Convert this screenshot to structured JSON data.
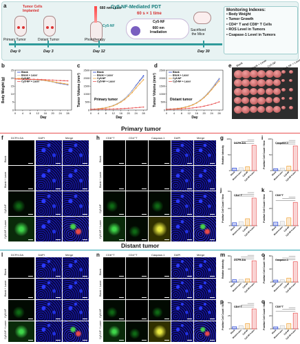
{
  "panel_a": {
    "letter": "a",
    "title_prefix": "Cy5-NF-Mediated PDT",
    "dose_text": "60 s × 1 time",
    "cloud_label": "Cy5-NF",
    "irradiation_label": "660 nm\nIrradiation",
    "implant_label": "Tumor Cells\nImplanted",
    "primary_label": "Primary Tumor",
    "distant_label": "Distant Tumor",
    "laser_label": "660 nm Laser",
    "agent_label": "Cy5-NF",
    "phototherapy_label": "Phototherapy",
    "sacrifice_label": "Sacrificed\nthe Mice",
    "days": [
      "Day 0",
      "Day 3",
      "Day 12",
      "Day 30"
    ],
    "monitoring_title": "Monitoring Indexes:",
    "monitoring_items": [
      "Body Weight",
      "Tumor Growth",
      "CD4⁺ T and CD8⁺ T Cells",
      "ROS Level in Tumors",
      "Csapase-1 Level in Tumors"
    ]
  },
  "legend_groups": [
    "Blank",
    "Blank + Laser",
    "Cy5-NF",
    "Cy5-NF + Laser"
  ],
  "colors": {
    "blank": "#1f3fd6",
    "blank_laser": "#c8c8c8",
    "cy5nf": "#f0a030",
    "cy5nf_laser": "#e85050",
    "primary_line": "#e85050",
    "distant_line": "#2aa6b3"
  },
  "panel_b": {
    "letter": "b",
    "chart_data": {
      "type": "line",
      "xlabel": "Day",
      "ylabel": "Body Weight (g)",
      "ylim": [
        0,
        25
      ],
      "yticks": [
        0,
        5,
        10,
        15,
        20,
        25
      ],
      "x": [
        0,
        2,
        4,
        6,
        8,
        10,
        12,
        14,
        16,
        18,
        20,
        22,
        24,
        26,
        28
      ],
      "xticks": [
        0,
        4,
        8,
        12,
        16,
        20,
        24,
        28
      ],
      "series": [
        {
          "name": "Blank",
          "values": [
            19.5,
            19.6,
            19.4,
            19.3,
            19.2,
            19.3,
            19.0,
            18.8,
            18.5,
            18.0,
            17.6,
            17.0,
            16.6,
            16.2,
            15.8
          ]
        },
        {
          "name": "Blank + Laser",
          "values": [
            19.4,
            19.5,
            19.3,
            19.2,
            19.0,
            19.1,
            18.9,
            18.6,
            18.4,
            18.0,
            17.5,
            17.1,
            16.8,
            16.4,
            16.0
          ]
        },
        {
          "name": "Cy5-NF",
          "values": [
            19.6,
            19.7,
            19.5,
            19.4,
            19.3,
            19.2,
            19.1,
            18.9,
            18.6,
            18.2,
            17.9,
            17.4,
            17.0,
            16.6,
            16.2
          ]
        },
        {
          "name": "Cy5-NF + Laser",
          "values": [
            19.5,
            19.4,
            19.3,
            19.2,
            19.2,
            19.3,
            19.2,
            19.1,
            19.0,
            18.9,
            18.8,
            18.6,
            18.5,
            18.4,
            18.3
          ]
        }
      ]
    }
  },
  "panel_c": {
    "letter": "c",
    "chart_data": {
      "type": "line",
      "title": "Primary tumor",
      "xlabel": "Day",
      "ylabel": "Tumor Volume (mm³)",
      "ylim": [
        0,
        2500
      ],
      "yticks": [
        0,
        500,
        1000,
        1500,
        2000,
        2500
      ],
      "x": [
        0,
        2,
        4,
        6,
        8,
        10,
        12,
        14,
        16,
        18,
        20,
        22,
        24,
        26,
        28
      ],
      "xticks": [
        0,
        4,
        8,
        12,
        16,
        20,
        24,
        28
      ],
      "series": [
        {
          "name": "Blank",
          "values": [
            50,
            60,
            80,
            110,
            150,
            210,
            290,
            400,
            540,
            720,
            950,
            1220,
            1540,
            1850,
            2150
          ]
        },
        {
          "name": "Blank + Laser",
          "values": [
            50,
            62,
            85,
            115,
            160,
            220,
            300,
            410,
            550,
            730,
            940,
            1200,
            1500,
            1800,
            2050
          ]
        },
        {
          "name": "Cy5-NF",
          "values": [
            50,
            58,
            78,
            105,
            140,
            200,
            270,
            370,
            500,
            660,
            870,
            1100,
            1380,
            1650,
            1900
          ]
        },
        {
          "name": "Cy5-NF + Laser",
          "values": [
            50,
            52,
            55,
            58,
            62,
            66,
            70,
            78,
            88,
            100,
            115,
            130,
            150,
            170,
            190
          ]
        }
      ]
    }
  },
  "panel_d": {
    "letter": "d",
    "chart_data": {
      "type": "line",
      "title": "Distant tumor",
      "xlabel": "Day",
      "ylabel": "Tumor Volume (mm³)",
      "ylim": [
        0,
        2500
      ],
      "yticks": [
        0,
        500,
        1000,
        1500,
        2000,
        2500
      ],
      "x": [
        0,
        2,
        4,
        6,
        8,
        10,
        12,
        14,
        16,
        18,
        20,
        22,
        24,
        26,
        28
      ],
      "xticks": [
        0,
        4,
        8,
        12,
        16,
        20,
        24,
        28
      ],
      "series": [
        {
          "name": "Blank",
          "values": [
            50,
            58,
            75,
            100,
            135,
            185,
            250,
            340,
            460,
            620,
            820,
            1060,
            1340,
            1650,
            1950
          ]
        },
        {
          "name": "Blank + Laser",
          "values": [
            50,
            60,
            78,
            105,
            140,
            195,
            260,
            350,
            470,
            630,
            830,
            1080,
            1360,
            1680,
            2000
          ]
        },
        {
          "name": "Cy5-NF",
          "values": [
            50,
            57,
            72,
            95,
            128,
            175,
            240,
            325,
            440,
            590,
            780,
            1010,
            1280,
            1560,
            1820
          ]
        },
        {
          "name": "Cy5-NF + Laser",
          "values": [
            50,
            54,
            60,
            68,
            78,
            92,
            110,
            135,
            165,
            200,
            245,
            300,
            360,
            430,
            510
          ]
        }
      ]
    }
  },
  "panel_e": {
    "letter": "e",
    "column_labels": [
      "Blank",
      "Blank + Laser",
      "Cy5-NF",
      "Cy5-NF + Laser"
    ]
  },
  "primary_section_title": "Primary tumor",
  "distant_section_title": "Distant tumor",
  "panel_f": {
    "letter": "f",
    "columns": [
      "DCFH-DA",
      "DAPI",
      "Merge"
    ],
    "rows": [
      "Blank",
      "Blank + Laser",
      "Cy5-NF",
      "Cy5-NF + Laser"
    ],
    "scale": "50 μm"
  },
  "panel_h": {
    "letter": "h",
    "columns": [
      "CD8⁺T",
      "CD4⁺T",
      "Caspase-1",
      "DAPI",
      "Merge"
    ],
    "rows": [
      "Blank",
      "Blank + Laser",
      "Cy5-NF",
      "Cy5-NF + Laser"
    ]
  },
  "panel_l": {
    "letter": "l",
    "columns": [
      "DCFH-DA",
      "DAPI",
      "Merge"
    ],
    "rows": [
      "Blank",
      "Blank + Laser",
      "Cy5-NF",
      "Cy5-NF + Laser"
    ]
  },
  "panel_n": {
    "letter": "n",
    "columns": [
      "CD8⁺T",
      "CD4⁺T",
      "Caspase-1",
      "DAPI",
      "Merge"
    ],
    "rows": [
      "Blank",
      "Blank + Laser",
      "Cy5-NF",
      "Cy5-NF + Laser"
    ]
  },
  "bar_panels": [
    {
      "letter": "g",
      "chart_data": {
        "type": "bar",
        "title": "DCFH-DA",
        "ylabel": "Relative Intensity",
        "ylim": [
          0,
          100
        ],
        "categories": [
          "Blank",
          "Blank+Laser",
          "Cy5-NF",
          "Cy5-NF+Laser"
        ],
        "values": [
          8,
          9,
          12,
          80
        ]
      }
    },
    {
      "letter": "i",
      "chart_data": {
        "type": "bar",
        "title": "Caspase-1",
        "ylabel": "Positive Cell Count / View",
        "ylim": [
          0,
          100
        ],
        "categories": [
          "Blank",
          "Blank+Laser",
          "Cy5-NF",
          "Cy5-NF+Laser"
        ],
        "values": [
          6,
          8,
          14,
          78
        ]
      }
    },
    {
      "letter": "j",
      "chart_data": {
        "type": "bar",
        "title": "CD4⁺T",
        "ylabel": "Positive Cell Count / View",
        "ylim": [
          0,
          60
        ],
        "categories": [
          "Blank",
          "Blank+Laser",
          "Cy5-NF",
          "Cy5-NF+Laser"
        ],
        "values": [
          5,
          7,
          12,
          48
        ]
      }
    },
    {
      "letter": "k",
      "chart_data": {
        "type": "bar",
        "title": "CD8⁺T",
        "ylabel": "Positive Cell Count / View",
        "ylim": [
          0,
          40
        ],
        "categories": [
          "Blank",
          "Blank+Laser",
          "Cy5-NF",
          "Cy5-NF+Laser"
        ],
        "values": [
          4,
          5,
          9,
          27
        ]
      }
    },
    {
      "letter": "m",
      "chart_data": {
        "type": "bar",
        "title": "DCFH-DA",
        "ylabel": "Relative Intensity",
        "ylim": [
          0,
          80
        ],
        "categories": [
          "Blank",
          "Blank+Laser",
          "Cy5-NF",
          "Cy5-NF+Laser"
        ],
        "values": [
          7,
          8,
          10,
          65
        ]
      }
    },
    {
      "letter": "o",
      "chart_data": {
        "type": "bar",
        "title": "Caspase-1",
        "ylabel": "Positive Cell Count / View",
        "ylim": [
          0,
          80
        ],
        "categories": [
          "Blank",
          "Blank+Laser",
          "Cy5-NF",
          "Cy5-NF+Laser"
        ],
        "values": [
          6,
          7,
          12,
          62
        ]
      }
    },
    {
      "letter": "p",
      "chart_data": {
        "type": "bar",
        "title": "CD4⁺T",
        "ylabel": "Positive Cell Count / View",
        "ylim": [
          0,
          50
        ],
        "categories": [
          "Blank",
          "Blank+Laser",
          "Cy5-NF",
          "Cy5-NF+Laser"
        ],
        "values": [
          4,
          6,
          10,
          38
        ]
      }
    },
    {
      "letter": "q",
      "chart_data": {
        "type": "bar",
        "title": "CD8⁺T",
        "ylabel": "Positive Cell Count / View",
        "ylim": [
          0,
          40
        ],
        "categories": [
          "Blank",
          "Blank+Laser",
          "Cy5-NF",
          "Cy5-NF+Laser"
        ],
        "values": [
          3,
          5,
          8,
          24
        ]
      }
    }
  ]
}
